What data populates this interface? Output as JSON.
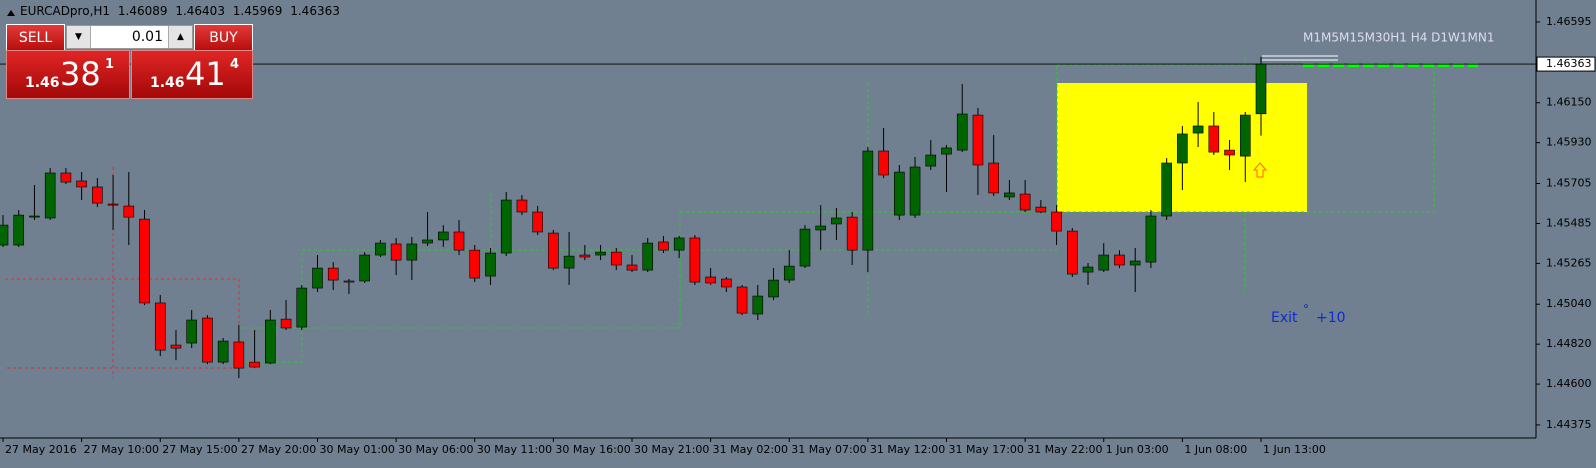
{
  "chart_data": {
    "type": "candlestick",
    "title": "EURCADpro,H1",
    "categories": [
      "27 May 2016",
      null,
      null,
      null,
      null,
      "27 May 10:00",
      null,
      null,
      null,
      null,
      "27 May 15:00",
      null,
      null,
      null,
      null,
      "27 May 20:00",
      null,
      null,
      null,
      null,
      "30 May 01:00",
      null,
      null,
      null,
      null,
      "30 May 06:00",
      null,
      null,
      null,
      null,
      "30 May 11:00",
      null,
      null,
      null,
      null,
      "30 May 16:00",
      null,
      null,
      null,
      null,
      "30 May 21:00",
      null,
      null,
      null,
      null,
      "31 May 02:00",
      null,
      null,
      null,
      null,
      "31 May 07:00",
      null,
      null,
      null,
      null,
      "31 May 12:00",
      null,
      null,
      null,
      null,
      "31 May 17:00",
      null,
      null,
      null,
      null,
      "31 May 22:00",
      null,
      null,
      null,
      null,
      "1 Jun 03:00",
      null,
      null,
      null,
      null,
      "1 Jun 08:00",
      null,
      null,
      null,
      null,
      "1 Jun 13:00"
    ],
    "open": [
      1.45366,
      1.45366,
      1.4552,
      1.45515,
      1.45763,
      1.45719,
      1.45686,
      1.45592,
      1.45581,
      1.45509,
      1.45047,
      1.44815,
      1.44826,
      1.44964,
      1.44721,
      1.44832,
      1.44721,
      1.44716,
      1.44958,
      1.44914,
      1.45129,
      1.45239,
      1.45168,
      1.45168,
      1.45311,
      1.45372,
      1.45283,
      1.45377,
      1.45394,
      1.45438,
      1.45338,
      1.45195,
      1.45322,
      1.45614,
      1.45548,
      1.45432,
      1.45239,
      1.45311,
      1.45311,
      1.45327,
      1.45256,
      1.45228,
      1.45383,
      1.45338,
      1.45405,
      1.4519,
      1.45179,
      1.45135,
      1.44986,
      1.4508,
      1.45173,
      1.4525,
      1.45449,
      1.45482,
      1.4552,
      1.45338,
      1.45884,
      1.45531,
      1.45531,
      1.45801,
      1.45867,
      1.45889,
      1.46082,
      1.45818,
      1.45631,
      1.45647,
      1.45575,
      1.45548,
      1.45443,
      1.45217,
      1.45228,
      1.45311,
      1.45256,
      1.45272,
      1.45526,
      1.45818,
      1.45983,
      1.46022,
      1.45889,
      1.45856,
      1.46089
    ],
    "high": [
      1.45531,
      1.45559,
      1.45697,
      1.4579,
      1.4579,
      1.45768,
      1.45735,
      1.45752,
      1.45768,
      1.45559,
      1.45091,
      1.44898,
      1.45008,
      1.4498,
      1.44854,
      1.44925,
      1.44898,
      1.45008,
      1.45063,
      1.45146,
      1.45311,
      1.45272,
      1.45179,
      1.45327,
      1.45394,
      1.45405,
      1.4541,
      1.45548,
      1.45476,
      1.45504,
      1.45366,
      1.4535,
      1.45658,
      1.45642,
      1.45581,
      1.45449,
      1.45438,
      1.45366,
      1.45366,
      1.4535,
      1.45311,
      1.45405,
      1.45416,
      1.45416,
      1.45421,
      1.45239,
      1.4519,
      1.45146,
      1.45146,
      1.45239,
      1.45338,
      1.45476,
      1.45586,
      1.4557,
      1.45548,
      1.45906,
      1.46011,
      1.45807,
      1.45851,
      1.45945,
      1.45917,
      1.46253,
      1.46121,
      1.45972,
      1.45724,
      1.45724,
      1.45614,
      1.45586,
      1.4546,
      1.45267,
      1.45377,
      1.45338,
      1.4535,
      1.45559,
      1.45845,
      1.46022,
      1.46154,
      1.46099,
      1.45945,
      1.46099,
      1.46403
    ],
    "low": [
      1.45355,
      1.45355,
      1.45504,
      1.45504,
      1.45702,
      1.45614,
      1.45575,
      1.45449,
      1.45366,
      1.45035,
      1.44754,
      1.44732,
      1.44798,
      1.4471,
      1.4471,
      1.44633,
      1.44688,
      1.4471,
      1.44898,
      1.44898,
      1.45107,
      1.45118,
      1.45096,
      1.45157,
      1.453,
      1.45201,
      1.45173,
      1.45361,
      1.45355,
      1.45311,
      1.45162,
      1.45146,
      1.45305,
      1.45531,
      1.45421,
      1.45228,
      1.45146,
      1.45283,
      1.45283,
      1.45228,
      1.45217,
      1.45217,
      1.45322,
      1.45294,
      1.45146,
      1.45146,
      1.45107,
      1.4498,
      1.44953,
      1.45063,
      1.45157,
      1.45239,
      1.45338,
      1.45394,
      1.45256,
      1.45217,
      1.45735,
      1.45504,
      1.45515,
      1.45779,
      1.45658,
      1.45878,
      1.45642,
      1.45636,
      1.45614,
      1.45548,
      1.45542,
      1.45366,
      1.4519,
      1.45146,
      1.45217,
      1.45239,
      1.45107,
      1.45239,
      1.45504,
      1.45669,
      1.45906,
      1.45862,
      1.45779,
      1.45713,
      1.45969
    ],
    "close": [
      1.45476,
      1.45531,
      1.45526,
      1.45763,
      1.45713,
      1.45686,
      1.45597,
      1.45586,
      1.4552,
      1.45047,
      1.44787,
      1.44798,
      1.44953,
      1.44721,
      1.44837,
      1.44688,
      1.44694,
      1.44953,
      1.44909,
      1.45129,
      1.45239,
      1.45173,
      1.45162,
      1.45311,
      1.45377,
      1.45283,
      1.45372,
      1.45394,
      1.45438,
      1.45338,
      1.45184,
      1.45322,
      1.45614,
      1.45548,
      1.45438,
      1.45239,
      1.45305,
      1.453,
      1.45327,
      1.45256,
      1.45228,
      1.45377,
      1.45338,
      1.45405,
      1.45162,
      1.45157,
      1.45135,
      1.44991,
      1.45085,
      1.45173,
      1.4525,
      1.45454,
      1.45471,
      1.45515,
      1.45338,
      1.45884,
      1.45752,
      1.45768,
      1.45796,
      1.45862,
      1.45901,
      1.46088,
      1.45807,
      1.45653,
      1.45653,
      1.45559,
      1.45548,
      1.45443,
      1.45206,
      1.45245,
      1.45311,
      1.45256,
      1.45278,
      1.45526,
      1.45818,
      1.45978,
      1.46022,
      1.45878,
      1.45862,
      1.46082,
      1.46363
    ],
    "up_color": "#006400",
    "down_color": "#ff0000",
    "wick_color": "#000000",
    "ylim": [
      1.44303,
      1.46716
    ],
    "yticks": [
      1.46595,
      {
        "value": 1.4615,
        "label": "1.46150"
      },
      {
        "value": 1.4593,
        "label": "1.45930"
      },
      1.45705,
      1.45485,
      1.45265,
      {
        "value": 1.4504,
        "label": "1.45040"
      },
      {
        "value": 1.4482,
        "label": "1.44820"
      },
      {
        "value": 1.446,
        "label": "1.44600"
      },
      1.44375
    ],
    "timeframes": "M1M5M15M30H1 H4 D1W1MN1",
    "annotation": {
      "exit": "Exit",
      "degree": "°",
      "pips": "+10"
    }
  },
  "trade_panel": {
    "sell": "SELL",
    "buy": "BUY",
    "lot": "0.01",
    "sell_price": {
      "big": "1.46",
      "pips": "38",
      "point": "1"
    },
    "buy_price": {
      "big": "1.46",
      "pips": "41",
      "point": "4"
    }
  }
}
